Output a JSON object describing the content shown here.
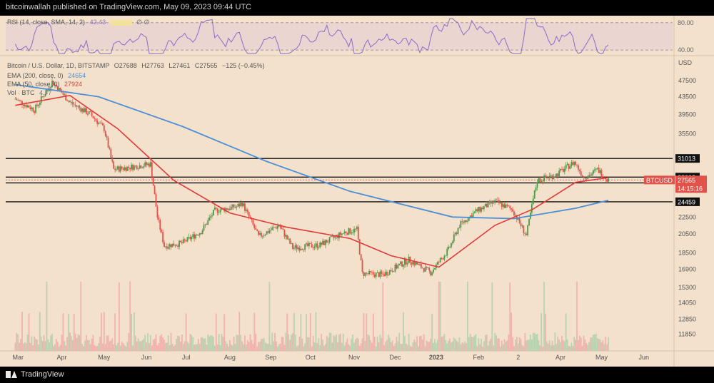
{
  "header": {
    "text": "bitcoinwallah published on TradingView.com, May 09, 2023 09:44 UTC"
  },
  "rsi": {
    "label": "RSI (14, close, SMA, 14, 2)",
    "value": "42.43",
    "extra": "∅ ∅",
    "levels": [
      80,
      40
    ]
  },
  "legend": {
    "title": "Bitcoin / U.S. Dollar, 1D, BITSTAMP",
    "o": "O27688",
    "h": "H27763",
    "l": "L27461",
    "c": "C27565",
    "chg": "−125 (−0.45%)",
    "ema200_label": "EMA (200, close, 0)",
    "ema200_value": "24654",
    "ema50_label": "EMA (50, close, 0)",
    "ema50_value": "27924",
    "vol_label": "Vol · BTC",
    "vol_value": "4.77"
  },
  "footer": {
    "brand": "TradingView"
  },
  "colors": {
    "up": "#4a9a48",
    "down": "#e0524a",
    "ema200": "#4a8fd8",
    "ema50": "#e03a3a",
    "rsi": "#8a6cc9",
    "rsi_ma": "#e8d44c",
    "background": "#f3e1cc"
  },
  "chart_data": {
    "type": "candlestick",
    "currency": "USD",
    "y_ticks": [
      47500,
      43500,
      39500,
      35500,
      31013,
      28003,
      27126,
      24459,
      22500,
      20500,
      18500,
      16900,
      15300,
      14050,
      12850,
      11850
    ],
    "horizontal_levels": [
      31013,
      28003,
      27126,
      24459
    ],
    "current_price": {
      "label": "BTCUSD",
      "value": "27565",
      "countdown": "14:15:16"
    },
    "x_labels": [
      "Mar",
      "Apr",
      "May",
      "Jun",
      "Jul",
      "Aug",
      "Sep",
      "Oct",
      "Nov",
      "Dec",
      "2023",
      "Feb",
      "2",
      "Apr",
      "May",
      "Jun"
    ],
    "close_path": [
      [
        "2022-03-01",
        43000
      ],
      [
        "2022-03-15",
        40500
      ],
      [
        "2022-03-28",
        47200
      ],
      [
        "2022-04-10",
        42200
      ],
      [
        "2022-04-25",
        39500
      ],
      [
        "2022-05-05",
        36500
      ],
      [
        "2022-05-12",
        29200
      ],
      [
        "2022-05-25",
        29600
      ],
      [
        "2022-06-08",
        30100
      ],
      [
        "2022-06-13",
        22500
      ],
      [
        "2022-06-18",
        19200
      ],
      [
        "2022-07-01",
        19500
      ],
      [
        "2022-07-15",
        20800
      ],
      [
        "2022-07-25",
        23300
      ],
      [
        "2022-08-10",
        23800
      ],
      [
        "2022-08-14",
        24300
      ],
      [
        "2022-08-26",
        20200
      ],
      [
        "2022-09-10",
        21500
      ],
      [
        "2022-09-20",
        19000
      ],
      [
        "2022-10-10",
        19300
      ],
      [
        "2022-10-28",
        20700
      ],
      [
        "2022-11-06",
        21000
      ],
      [
        "2022-11-10",
        16500
      ],
      [
        "2022-11-25",
        16400
      ],
      [
        "2022-12-14",
        17800
      ],
      [
        "2022-12-30",
        16600
      ],
      [
        "2023-01-12",
        18800
      ],
      [
        "2023-01-20",
        21500
      ],
      [
        "2023-02-01",
        23200
      ],
      [
        "2023-02-15",
        24500
      ],
      [
        "2023-02-28",
        23400
      ],
      [
        "2023-03-10",
        20300
      ],
      [
        "2023-03-15",
        24800
      ],
      [
        "2023-03-18",
        27500
      ],
      [
        "2023-04-01",
        28400
      ],
      [
        "2023-04-14",
        30400
      ],
      [
        "2023-04-21",
        28000
      ],
      [
        "2023-04-26",
        28400
      ],
      [
        "2023-05-01",
        29200
      ],
      [
        "2023-05-09",
        27565
      ]
    ],
    "ema200_path": [
      [
        "2022-03-01",
        46500
      ],
      [
        "2022-05-01",
        43500
      ],
      [
        "2022-07-01",
        37000
      ],
      [
        "2022-09-01",
        30500
      ],
      [
        "2022-11-01",
        25900
      ],
      [
        "2023-01-15",
        22500
      ],
      [
        "2023-03-01",
        22300
      ],
      [
        "2023-04-15",
        23600
      ],
      [
        "2023-05-09",
        24654
      ]
    ],
    "ema50_path": [
      [
        "2022-03-01",
        41500
      ],
      [
        "2022-04-10",
        43800
      ],
      [
        "2022-05-15",
        36500
      ],
      [
        "2022-06-25",
        27500
      ],
      [
        "2022-08-05",
        23000
      ],
      [
        "2022-09-15",
        21300
      ],
      [
        "2022-11-01",
        20000
      ],
      [
        "2022-12-01",
        18200
      ],
      [
        "2023-01-05",
        17100
      ],
      [
        "2023-02-15",
        21500
      ],
      [
        "2023-03-15",
        23500
      ],
      [
        "2023-04-15",
        27200
      ],
      [
        "2023-05-09",
        27924
      ]
    ]
  }
}
